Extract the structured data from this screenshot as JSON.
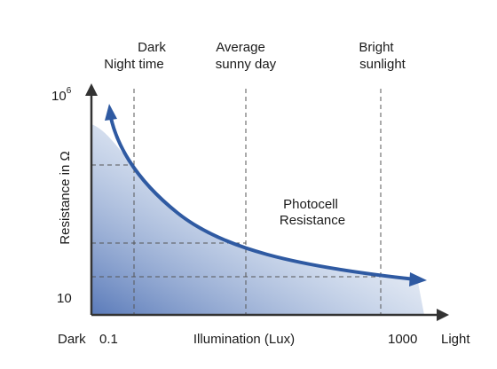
{
  "chart_data": {
    "type": "line",
    "title": "",
    "xlabel": "Illumination (Lux)",
    "ylabel": "Resistance in Ω",
    "x_scale": "log",
    "x_ticks": [
      "0.1",
      "1000"
    ],
    "y_ticks": {
      "top_base": "10",
      "top_exp": "6",
      "bottom": "10"
    },
    "x_end_labels": {
      "left": "Dark",
      "right": "Light"
    },
    "reference_lines": [
      {
        "line1": "Dark",
        "line2": "Night time"
      },
      {
        "line1": "Average",
        "line2": "sunny day"
      },
      {
        "line1": "Bright",
        "line2": "sunlight"
      }
    ],
    "series": [
      {
        "name": "",
        "label_line1": "Photocell",
        "label_line2": "Resistance"
      }
    ],
    "colors": {
      "curve": "#2f5aa2",
      "fill_dark": "#3d63ad",
      "fill_light": "#ffffff",
      "axis": "#333333",
      "grid": "#555555"
    }
  }
}
